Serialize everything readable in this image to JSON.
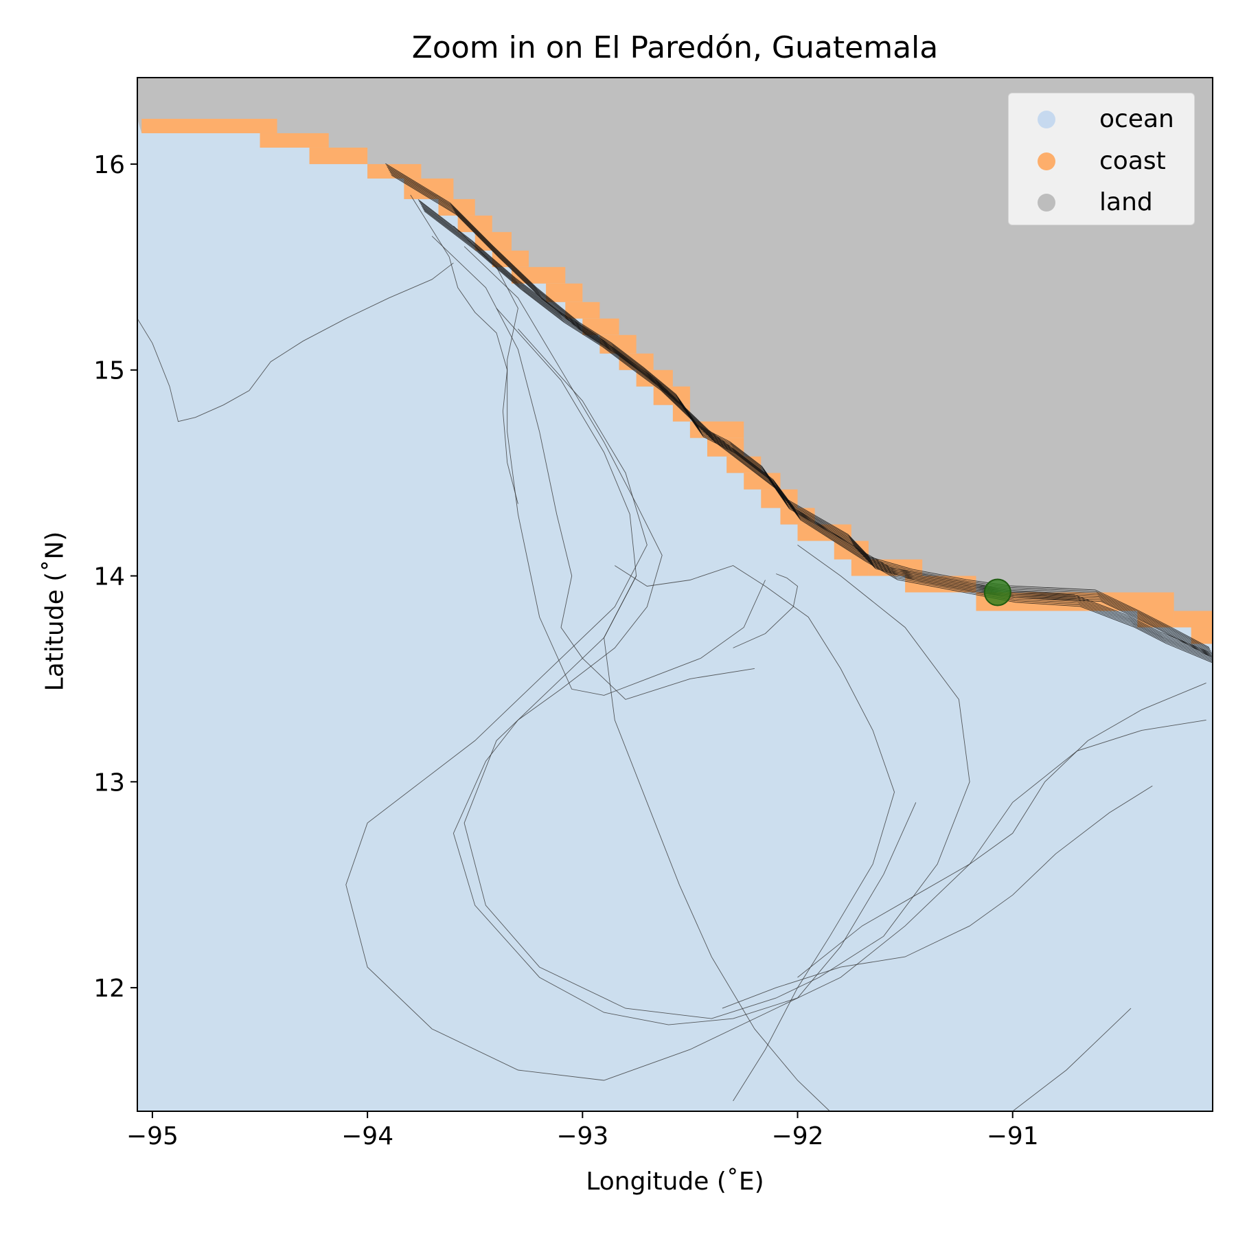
{
  "chart_data": {
    "type": "map",
    "title": "Zoom in on El Paredón, Guatemala",
    "xlabel": "Longitude (˚E)",
    "ylabel": "Latitude (˚N)",
    "xlim": [
      -95.07,
      -90.07
    ],
    "ylim": [
      11.4,
      16.42
    ],
    "xticks": [
      -95,
      -94,
      -93,
      -92,
      -91
    ],
    "xtick_labels": [
      "−95",
      "−94",
      "−93",
      "−92",
      "−91"
    ],
    "yticks": [
      12,
      13,
      14,
      15,
      16
    ],
    "ytick_labels": [
      "12",
      "13",
      "14",
      "15",
      "16"
    ],
    "legend_position": "top-right",
    "legend": [
      {
        "label": "ocean",
        "color": "#c6d9ef"
      },
      {
        "label": "coast",
        "color": "#fdae6b"
      },
      {
        "label": "land",
        "color": "#bdbdbd"
      }
    ],
    "colors": {
      "ocean": "#ccdeee",
      "coast": "#fdae6b",
      "land": "#bfbfbf",
      "track": "#333333",
      "marker": "#2e7d1a"
    },
    "coast_cells": [
      [
        -95.05,
        16.22,
        -94.42,
        16.15
      ],
      [
        -94.5,
        16.15,
        -94.18,
        16.08
      ],
      [
        -94.27,
        16.08,
        -94.0,
        16.0
      ],
      [
        -94.0,
        16.0,
        -93.75,
        15.93
      ],
      [
        -93.83,
        15.93,
        -93.6,
        15.83
      ],
      [
        -93.67,
        15.83,
        -93.5,
        15.75
      ],
      [
        -93.58,
        15.75,
        -93.42,
        15.67
      ],
      [
        -93.5,
        15.67,
        -93.33,
        15.58
      ],
      [
        -93.42,
        15.58,
        -93.25,
        15.5
      ],
      [
        -93.33,
        15.5,
        -93.08,
        15.42
      ],
      [
        -93.17,
        15.42,
        -93.0,
        15.33
      ],
      [
        -93.08,
        15.33,
        -92.92,
        15.25
      ],
      [
        -93.0,
        15.25,
        -92.83,
        15.17
      ],
      [
        -92.92,
        15.17,
        -92.75,
        15.08
      ],
      [
        -92.83,
        15.08,
        -92.67,
        15.0
      ],
      [
        -92.75,
        15.0,
        -92.58,
        14.92
      ],
      [
        -92.67,
        14.92,
        -92.5,
        14.83
      ],
      [
        -92.58,
        14.83,
        -92.5,
        14.75
      ],
      [
        -92.5,
        14.75,
        -92.25,
        14.67
      ],
      [
        -92.42,
        14.67,
        -92.25,
        14.58
      ],
      [
        -92.33,
        14.58,
        -92.17,
        14.5
      ],
      [
        -92.25,
        14.5,
        -92.08,
        14.42
      ],
      [
        -92.17,
        14.42,
        -92.0,
        14.33
      ],
      [
        -92.08,
        14.33,
        -91.92,
        14.25
      ],
      [
        -92.0,
        14.25,
        -91.75,
        14.17
      ],
      [
        -91.83,
        14.17,
        -91.67,
        14.08
      ],
      [
        -91.75,
        14.08,
        -91.67,
        14.0
      ],
      [
        -91.67,
        14.08,
        -91.42,
        14.0
      ],
      [
        -91.5,
        14.0,
        -91.17,
        13.92
      ],
      [
        -91.17,
        13.92,
        -90.58,
        13.83
      ],
      [
        -90.58,
        13.92,
        -90.25,
        13.83
      ],
      [
        -90.42,
        13.83,
        -90.25,
        13.75
      ],
      [
        -90.25,
        13.83,
        -90.07,
        13.75
      ],
      [
        -90.17,
        13.75,
        -90.07,
        13.67
      ]
    ],
    "tracks": [
      [
        [
          -95.07,
          15.25
        ],
        [
          -95.0,
          15.13
        ],
        [
          -94.92,
          14.92
        ],
        [
          -94.88,
          14.75
        ],
        [
          -94.8,
          14.77
        ],
        [
          -94.67,
          14.83
        ],
        [
          -94.55,
          14.9
        ],
        [
          -94.45,
          15.04
        ],
        [
          -94.3,
          15.14
        ],
        [
          -94.1,
          15.25
        ],
        [
          -93.9,
          15.35
        ],
        [
          -93.7,
          15.44
        ],
        [
          -93.6,
          15.52
        ]
      ],
      [
        [
          -93.8,
          15.85
        ],
        [
          -93.62,
          15.55
        ],
        [
          -93.58,
          15.4
        ],
        [
          -93.5,
          15.28
        ],
        [
          -93.4,
          15.18
        ],
        [
          -93.35,
          15.0
        ],
        [
          -93.37,
          14.8
        ],
        [
          -93.35,
          14.55
        ],
        [
          -93.3,
          14.35
        ]
      ],
      [
        [
          -93.6,
          15.7
        ],
        [
          -93.4,
          15.5
        ],
        [
          -93.3,
          15.3
        ],
        [
          -93.35,
          15.05
        ],
        [
          -93.35,
          14.7
        ],
        [
          -93.3,
          14.3
        ],
        [
          -93.2,
          13.8
        ],
        [
          -93.05,
          13.45
        ],
        [
          -92.9,
          13.42
        ],
        [
          -92.7,
          13.5
        ],
        [
          -92.45,
          13.6
        ],
        [
          -92.25,
          13.75
        ],
        [
          -92.15,
          13.98
        ]
      ],
      [
        [
          -93.7,
          15.65
        ],
        [
          -93.45,
          15.4
        ],
        [
          -93.3,
          15.1
        ],
        [
          -93.2,
          14.7
        ],
        [
          -93.12,
          14.3
        ],
        [
          -93.05,
          14.0
        ],
        [
          -93.1,
          13.75
        ],
        [
          -93.0,
          13.6
        ],
        [
          -92.8,
          13.4
        ],
        [
          -92.5,
          13.5
        ],
        [
          -92.2,
          13.55
        ]
      ],
      [
        [
          -93.55,
          15.6
        ],
        [
          -93.3,
          15.35
        ],
        [
          -93.1,
          15.0
        ],
        [
          -92.9,
          14.65
        ],
        [
          -92.75,
          14.35
        ],
        [
          -92.63,
          14.1
        ],
        [
          -92.7,
          13.85
        ],
        [
          -92.85,
          13.65
        ],
        [
          -93.1,
          13.45
        ],
        [
          -93.3,
          13.3
        ],
        [
          -93.45,
          13.1
        ],
        [
          -93.6,
          12.75
        ],
        [
          -93.5,
          12.4
        ],
        [
          -93.2,
          12.05
        ],
        [
          -92.9,
          11.88
        ],
        [
          -92.6,
          11.82
        ],
        [
          -92.3,
          11.85
        ],
        [
          -92.0,
          11.95
        ],
        [
          -91.8,
          12.2
        ],
        [
          -91.6,
          12.55
        ],
        [
          -91.45,
          12.9
        ]
      ],
      [
        [
          -93.4,
          15.3
        ],
        [
          -93.1,
          14.95
        ],
        [
          -92.9,
          14.6
        ],
        [
          -92.78,
          14.3
        ],
        [
          -92.75,
          14.0
        ],
        [
          -92.9,
          13.7
        ],
        [
          -93.15,
          13.45
        ],
        [
          -93.4,
          13.2
        ],
        [
          -93.55,
          12.8
        ],
        [
          -93.45,
          12.4
        ],
        [
          -93.2,
          12.1
        ],
        [
          -92.8,
          11.9
        ],
        [
          -92.4,
          11.85
        ],
        [
          -92.1,
          11.95
        ],
        [
          -91.9,
          12.05
        ],
        [
          -91.6,
          12.25
        ],
        [
          -91.35,
          12.6
        ],
        [
          -91.2,
          13.0
        ],
        [
          -91.25,
          13.4
        ],
        [
          -91.5,
          13.75
        ],
        [
          -91.8,
          14.0
        ],
        [
          -92.0,
          14.15
        ]
      ],
      [
        [
          -93.3,
          15.2
        ],
        [
          -93.0,
          14.85
        ],
        [
          -92.8,
          14.5
        ],
        [
          -92.7,
          14.15
        ],
        [
          -92.85,
          13.85
        ],
        [
          -93.2,
          13.5
        ],
        [
          -93.5,
          13.2
        ],
        [
          -93.75,
          13.0
        ],
        [
          -94.0,
          12.8
        ],
        [
          -94.1,
          12.5
        ],
        [
          -94.0,
          12.1
        ],
        [
          -93.7,
          11.8
        ],
        [
          -93.3,
          11.6
        ],
        [
          -92.9,
          11.55
        ],
        [
          -92.5,
          11.7
        ],
        [
          -92.1,
          11.9
        ],
        [
          -91.8,
          12.05
        ],
        [
          -91.5,
          12.3
        ],
        [
          -91.2,
          12.6
        ],
        [
          -91.0,
          12.9
        ],
        [
          -90.7,
          13.15
        ],
        [
          -90.4,
          13.25
        ],
        [
          -90.1,
          13.3
        ]
      ],
      [
        [
          -92.85,
          14.05
        ],
        [
          -92.7,
          13.95
        ],
        [
          -92.5,
          13.98
        ],
        [
          -92.3,
          14.05
        ],
        [
          -92.15,
          13.95
        ],
        [
          -91.95,
          13.8
        ],
        [
          -91.8,
          13.55
        ],
        [
          -91.65,
          13.25
        ],
        [
          -91.55,
          12.95
        ],
        [
          -91.65,
          12.6
        ],
        [
          -91.85,
          12.25
        ],
        [
          -92.0,
          12.0
        ],
        [
          -92.15,
          11.7
        ],
        [
          -92.3,
          11.45
        ]
      ],
      [
        [
          -92.75,
          14.0
        ],
        [
          -92.9,
          13.7
        ],
        [
          -92.85,
          13.3
        ],
        [
          -92.7,
          12.9
        ],
        [
          -92.55,
          12.5
        ],
        [
          -92.4,
          12.15
        ],
        [
          -92.2,
          11.8
        ],
        [
          -92.0,
          11.55
        ],
        [
          -91.85,
          11.4
        ]
      ],
      [
        [
          -91.0,
          11.4
        ],
        [
          -90.75,
          11.6
        ],
        [
          -90.55,
          11.8
        ],
        [
          -90.45,
          11.9
        ]
      ],
      [
        [
          -90.35,
          12.98
        ],
        [
          -90.55,
          12.85
        ],
        [
          -90.8,
          12.65
        ],
        [
          -91.0,
          12.45
        ],
        [
          -91.2,
          12.3
        ],
        [
          -91.5,
          12.15
        ],
        [
          -91.8,
          12.1
        ],
        [
          -92.1,
          12.0
        ],
        [
          -92.35,
          11.9
        ]
      ],
      [
        [
          -90.1,
          13.48
        ],
        [
          -90.4,
          13.35
        ],
        [
          -90.65,
          13.2
        ],
        [
          -90.85,
          13.0
        ],
        [
          -91.0,
          12.75
        ],
        [
          -91.2,
          12.6
        ],
        [
          -91.45,
          12.45
        ],
        [
          -91.7,
          12.3
        ],
        [
          -92.0,
          12.05
        ]
      ],
      [
        [
          -92.1,
          14.01
        ],
        [
          -92.05,
          13.99
        ],
        [
          -92.0,
          13.95
        ],
        [
          -92.02,
          13.85
        ],
        [
          -92.15,
          13.72
        ],
        [
          -92.3,
          13.65
        ]
      ]
    ],
    "coastal_tracks": [
      [
        [
          -93.9,
          15.97
        ],
        [
          -93.6,
          15.78
        ],
        [
          -93.4,
          15.57
        ],
        [
          -93.2,
          15.37
        ],
        [
          -93.0,
          15.2
        ],
        [
          -92.85,
          15.1
        ],
        [
          -92.7,
          14.98
        ],
        [
          -92.55,
          14.85
        ],
        [
          -92.45,
          14.7
        ],
        [
          -92.3,
          14.62
        ],
        [
          -92.15,
          14.5
        ],
        [
          -92.05,
          14.35
        ],
        [
          -91.9,
          14.26
        ],
        [
          -91.75,
          14.17
        ],
        [
          -91.65,
          14.06
        ],
        [
          -91.45,
          14.0
        ],
        [
          -91.2,
          13.95
        ],
        [
          -91.0,
          13.92
        ],
        [
          -90.6,
          13.9
        ],
        [
          -90.4,
          13.8
        ],
        [
          -90.25,
          13.72
        ],
        [
          -90.07,
          13.62
        ]
      ],
      [
        [
          -93.75,
          15.8
        ],
        [
          -93.5,
          15.6
        ],
        [
          -93.3,
          15.42
        ],
        [
          -93.1,
          15.26
        ],
        [
          -92.92,
          15.14
        ],
        [
          -92.78,
          15.03
        ],
        [
          -92.65,
          14.93
        ],
        [
          -92.52,
          14.8
        ],
        [
          -92.4,
          14.68
        ],
        [
          -92.25,
          14.56
        ],
        [
          -92.1,
          14.44
        ],
        [
          -92.0,
          14.3
        ],
        [
          -91.85,
          14.2
        ],
        [
          -91.7,
          14.1
        ],
        [
          -91.55,
          14.01
        ],
        [
          -91.3,
          13.96
        ],
        [
          -91.0,
          13.9
        ],
        [
          -90.7,
          13.88
        ],
        [
          -90.45,
          13.78
        ],
        [
          -90.3,
          13.7
        ],
        [
          -90.07,
          13.6
        ]
      ]
    ],
    "marker": {
      "lon": -91.07,
      "lat": 13.92
    }
  },
  "legend_entries": [
    "ocean",
    "coast",
    "land"
  ]
}
